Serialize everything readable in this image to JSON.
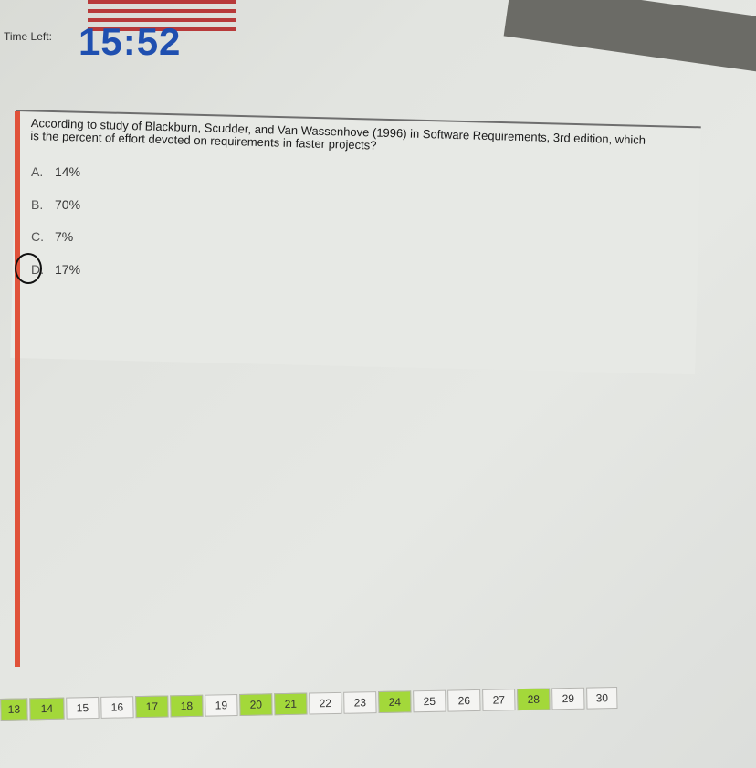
{
  "header": {
    "time_left_label": "Time Left:",
    "timer_value": "15:52",
    "timer_color": "#1f4fb0"
  },
  "question": {
    "text": "According to study of Blackburn, Scudder, and Van Wassenhove (1996) in Software Requirements, 3rd edition, which is the percent of effort devoted on requirements in faster projects?",
    "options": [
      {
        "letter": "A.",
        "value": "14%"
      },
      {
        "letter": "B.",
        "value": "70%"
      },
      {
        "letter": "C.",
        "value": "7%"
      },
      {
        "letter": "D.",
        "value": "17%"
      }
    ],
    "circled_option": "D."
  },
  "nav": {
    "answered_color": "#a3d83a",
    "buttons": [
      {
        "label": "13",
        "answered": true
      },
      {
        "label": "14",
        "answered": true
      },
      {
        "label": "15",
        "answered": false
      },
      {
        "label": "16",
        "answered": false
      },
      {
        "label": "17",
        "answered": true
      },
      {
        "label": "18",
        "answered": true
      },
      {
        "label": "19",
        "answered": false
      },
      {
        "label": "20",
        "answered": true
      },
      {
        "label": "21",
        "answered": true
      },
      {
        "label": "22",
        "answered": false
      },
      {
        "label": "23",
        "answered": false
      },
      {
        "label": "24",
        "answered": true
      },
      {
        "label": "25",
        "answered": false
      },
      {
        "label": "26",
        "answered": false
      },
      {
        "label": "27",
        "answered": false
      },
      {
        "label": "28",
        "answered": true
      },
      {
        "label": "29",
        "answered": false
      },
      {
        "label": "30",
        "answered": false
      }
    ]
  }
}
